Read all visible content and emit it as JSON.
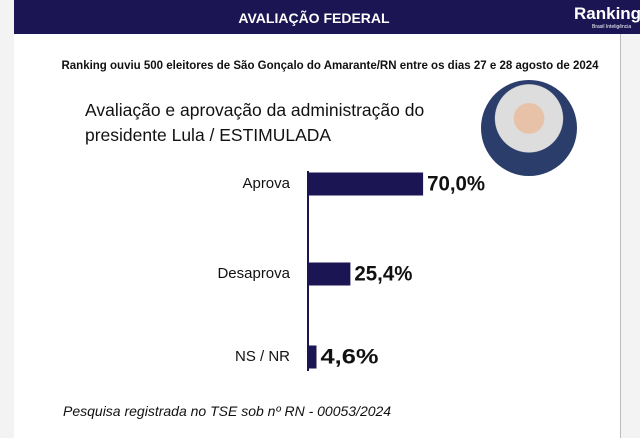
{
  "header": {
    "title": "AVALIAÇÃO FEDERAL",
    "logo": "Ranking",
    "logo_tagline": "Brasil Inteligência"
  },
  "chart_data": {
    "type": "bar",
    "orientation": "horizontal",
    "subtitle": "Ranking ouviu 500 eleitores de São Gonçalo do Amarante/RN entre os dias 27 e 28 agosto de 2024",
    "title": "Avaliação e aprovação da administração do presidente Lula / ESTIMULADA",
    "categories": [
      "Aprova",
      "Desaprova",
      "NS / NR"
    ],
    "values": [
      70,
      25.4,
      4.6
    ],
    "value_labels": [
      "70,0%",
      "25,4%",
      "4,6%"
    ],
    "color": "#1b1553",
    "note": "Pesquisa registrada no TSE sob nº RN - 00053/2024"
  }
}
